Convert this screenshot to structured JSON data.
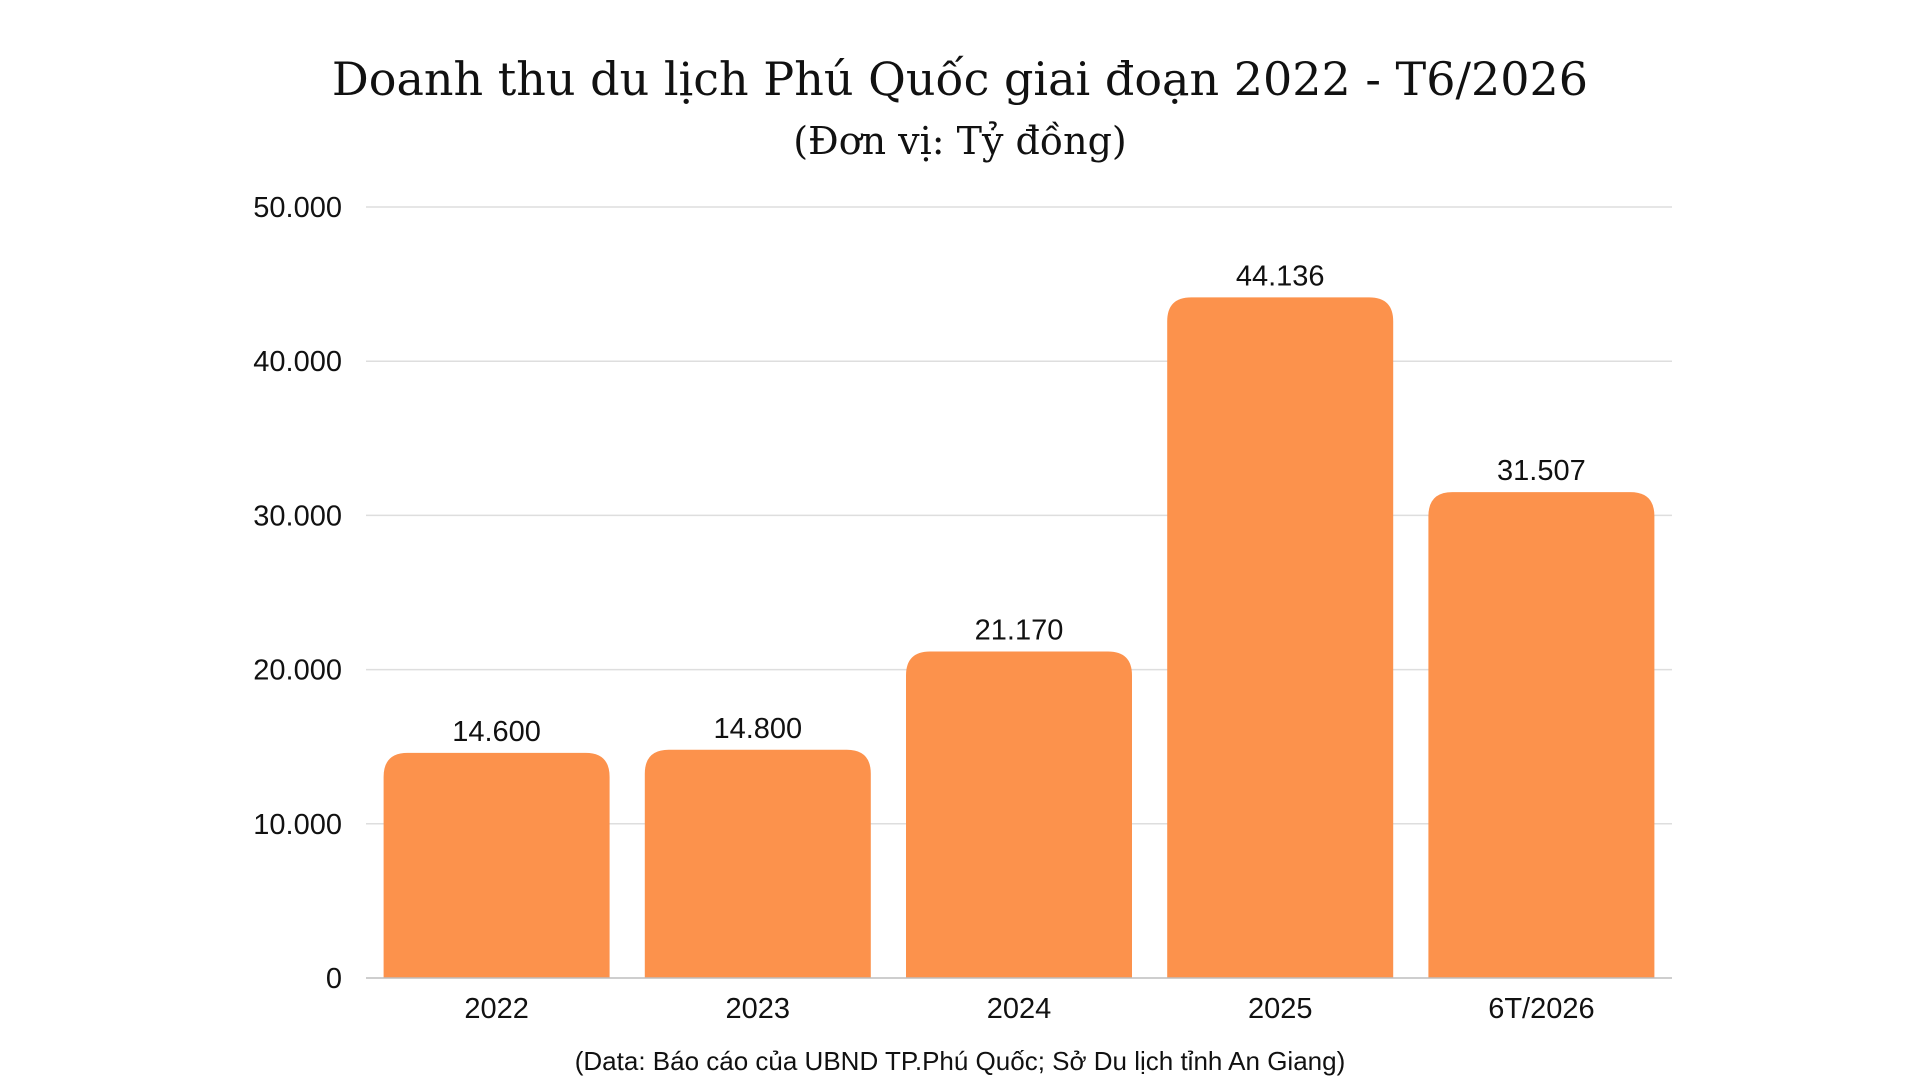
{
  "chart_data": {
    "type": "bar",
    "title": "Doanh thu du lịch Phú Quốc giai đoạn 2022 - T6/2026",
    "subtitle": "(Đơn vị: Tỷ đồng)",
    "categories": [
      "2022",
      "2023",
      "2024",
      "2025",
      "6T/2026"
    ],
    "values": [
      14600,
      14800,
      21170,
      44136,
      31507
    ],
    "value_labels": [
      "14.600",
      "14.800",
      "21.170",
      "44.136",
      "31.507"
    ],
    "ylim": [
      0,
      50000
    ],
    "yticks": [
      0,
      10000,
      20000,
      30000,
      40000,
      50000
    ],
    "ytick_labels": [
      "0",
      "10.000",
      "20.000",
      "30.000",
      "40.000",
      "50.000"
    ],
    "xlabel": "",
    "ylabel": "",
    "grid": true,
    "legend": "none",
    "bar_color": "#fc924c",
    "source": "(Data: Báo cáo của UBND TP.Phú Quốc; Sở Du lịch tỉnh An Giang)"
  }
}
